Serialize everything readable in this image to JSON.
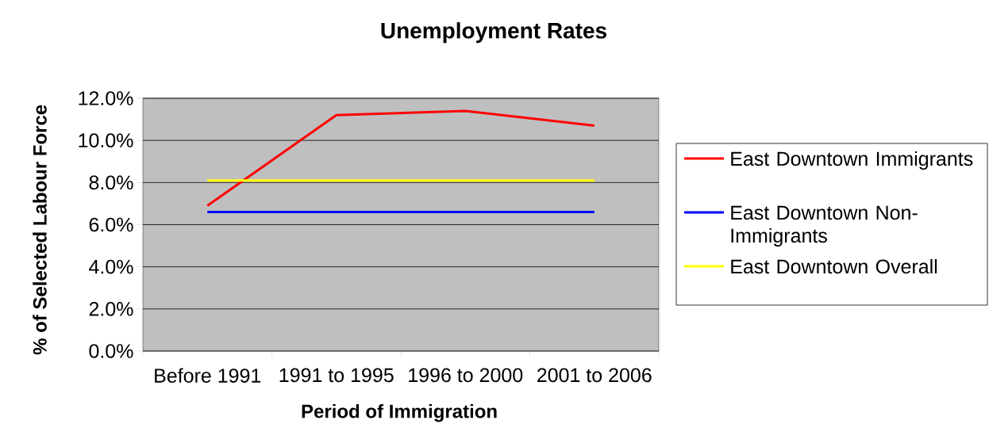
{
  "chart_data": {
    "type": "line",
    "title": "Unemployment Rates",
    "xlabel": "Period of Immigration",
    "ylabel": "% of Selected Labour Force",
    "categories": [
      "Before 1991",
      "1991 to 1995",
      "1996 to 2000",
      "2001 to 2006"
    ],
    "series": [
      {
        "name": "East Downtown Immigrants",
        "color": "#ff0000",
        "values": [
          6.9,
          11.2,
          11.4,
          10.7
        ]
      },
      {
        "name": "East Downtown Non-Immigrants",
        "color": "#0000ff",
        "values": [
          6.6,
          6.6,
          6.6,
          6.6
        ]
      },
      {
        "name": "East Downtown Overall",
        "color": "#ffff00",
        "values": [
          8.1,
          8.1,
          8.1,
          8.1
        ]
      }
    ],
    "ylim": [
      0,
      12
    ],
    "yticks": [
      {
        "value": 0,
        "label": "0.0%"
      },
      {
        "value": 2,
        "label": "2.0%"
      },
      {
        "value": 4,
        "label": "4.0%"
      },
      {
        "value": 6,
        "label": "6.0%"
      },
      {
        "value": 8,
        "label": "8.0%"
      },
      {
        "value": 10,
        "label": "10.0%"
      },
      {
        "value": 12,
        "label": "12.0%"
      }
    ],
    "grid": "y",
    "legend": "right",
    "marker": "none",
    "line_style": "solid"
  }
}
